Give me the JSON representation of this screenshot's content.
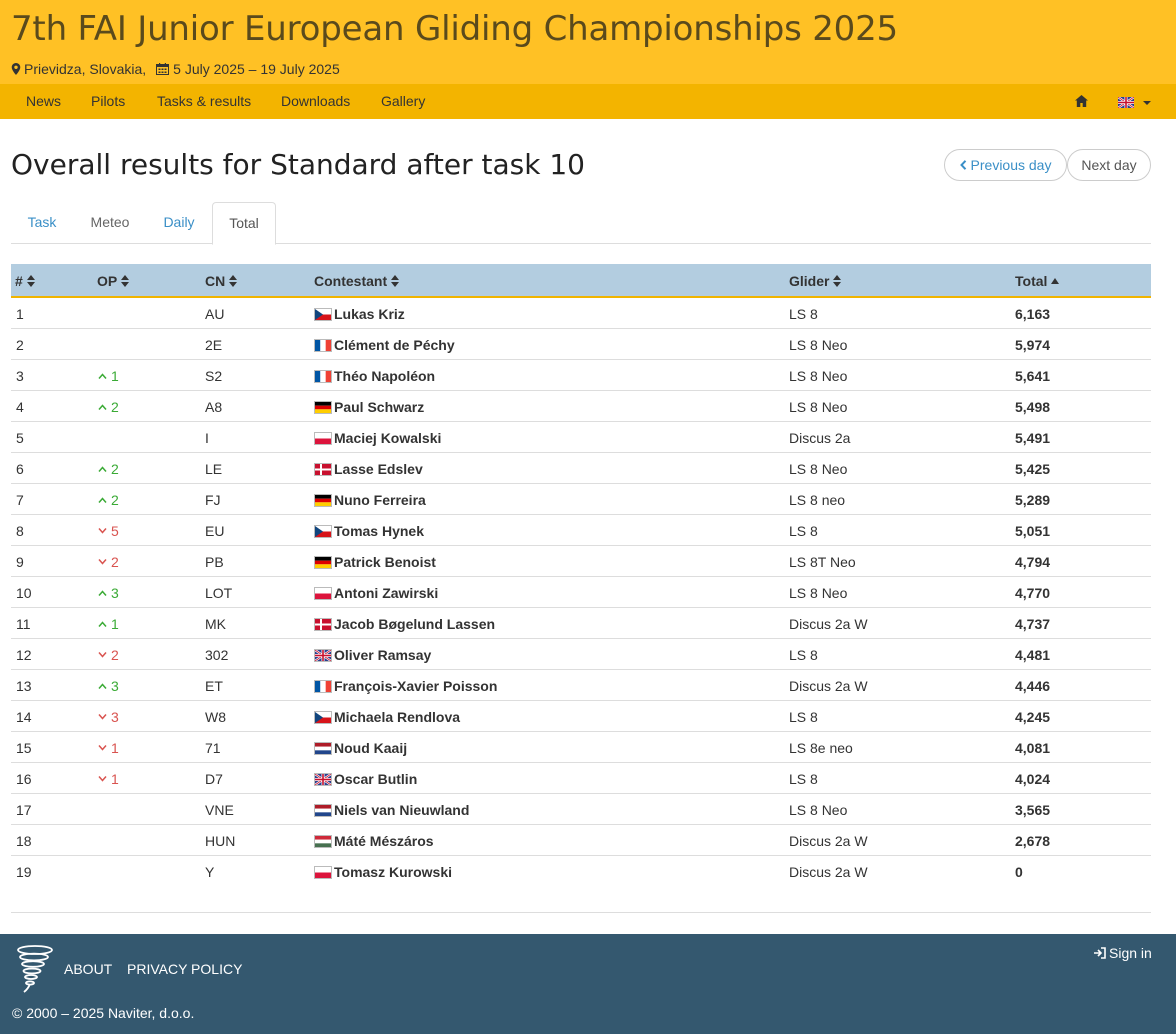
{
  "header": {
    "title": "7th FAI Junior European Gliding Championships 2025",
    "location": "Prievidza, Slovakia,",
    "dates": "5 July 2025 – 19 July 2025"
  },
  "nav": {
    "items": [
      "News",
      "Pilots",
      "Tasks & results",
      "Downloads",
      "Gallery"
    ],
    "language": "gb"
  },
  "page": {
    "title": "Overall results for Standard after task 10",
    "prev_day": "Previous day",
    "next_day": "Next day"
  },
  "tabs": [
    {
      "label": "Task",
      "active": false
    },
    {
      "label": "Meteo",
      "active": false
    },
    {
      "label": "Daily",
      "active": false
    },
    {
      "label": "Total",
      "active": true
    }
  ],
  "table": {
    "columns": [
      "#",
      "OP",
      "CN",
      "Contestant",
      "Glider",
      "Total"
    ],
    "sorted_column": "Total",
    "sort_direction": "asc",
    "rows": [
      {
        "rank": "1",
        "op_dir": "",
        "op": "",
        "cn": "AU",
        "flag": "cz",
        "name": "Lukas Kriz",
        "glider": "LS 8",
        "total": "6,163"
      },
      {
        "rank": "2",
        "op_dir": "",
        "op": "",
        "cn": "2E",
        "flag": "fr",
        "name": "Clément de Péchy",
        "glider": "LS 8 Neo",
        "total": "5,974"
      },
      {
        "rank": "3",
        "op_dir": "up",
        "op": "1",
        "cn": "S2",
        "flag": "fr",
        "name": "Théo Napoléon",
        "glider": "LS 8 Neo",
        "total": "5,641"
      },
      {
        "rank": "4",
        "op_dir": "up",
        "op": "2",
        "cn": "A8",
        "flag": "de",
        "name": "Paul Schwarz",
        "glider": "LS 8 Neo",
        "total": "5,498"
      },
      {
        "rank": "5",
        "op_dir": "",
        "op": "",
        "cn": "I",
        "flag": "pl",
        "name": "Maciej Kowalski",
        "glider": "Discus 2a",
        "total": "5,491"
      },
      {
        "rank": "6",
        "op_dir": "up",
        "op": "2",
        "cn": "LE",
        "flag": "dk",
        "name": "Lasse Edslev",
        "glider": "LS 8 Neo",
        "total": "5,425"
      },
      {
        "rank": "7",
        "op_dir": "up",
        "op": "2",
        "cn": "FJ",
        "flag": "de",
        "name": "Nuno Ferreira",
        "glider": "LS 8 neo",
        "total": "5,289"
      },
      {
        "rank": "8",
        "op_dir": "down",
        "op": "5",
        "cn": "EU",
        "flag": "cz",
        "name": "Tomas Hynek",
        "glider": "LS 8",
        "total": "5,051"
      },
      {
        "rank": "9",
        "op_dir": "down",
        "op": "2",
        "cn": "PB",
        "flag": "de",
        "name": "Patrick Benoist",
        "glider": "LS 8T Neo",
        "total": "4,794"
      },
      {
        "rank": "10",
        "op_dir": "up",
        "op": "3",
        "cn": "LOT",
        "flag": "pl",
        "name": "Antoni Zawirski",
        "glider": "LS 8 Neo",
        "total": "4,770"
      },
      {
        "rank": "11",
        "op_dir": "up",
        "op": "1",
        "cn": "MK",
        "flag": "dk",
        "name": "Jacob Bøgelund Lassen",
        "glider": "Discus 2a W",
        "total": "4,737"
      },
      {
        "rank": "12",
        "op_dir": "down",
        "op": "2",
        "cn": "302",
        "flag": "gb",
        "name": "Oliver Ramsay",
        "glider": "LS 8",
        "total": "4,481"
      },
      {
        "rank": "13",
        "op_dir": "up",
        "op": "3",
        "cn": "ET",
        "flag": "fr",
        "name": "François-Xavier Poisson",
        "glider": "Discus 2a W",
        "total": "4,446"
      },
      {
        "rank": "14",
        "op_dir": "down",
        "op": "3",
        "cn": "W8",
        "flag": "cz",
        "name": "Michaela Rendlova",
        "glider": "LS 8",
        "total": "4,245"
      },
      {
        "rank": "15",
        "op_dir": "down",
        "op": "1",
        "cn": "71",
        "flag": "nl",
        "name": "Noud Kaaij",
        "glider": "LS 8e neo",
        "total": "4,081"
      },
      {
        "rank": "16",
        "op_dir": "down",
        "op": "1",
        "cn": "D7",
        "flag": "gb",
        "name": "Oscar Butlin",
        "glider": "LS 8",
        "total": "4,024"
      },
      {
        "rank": "17",
        "op_dir": "",
        "op": "",
        "cn": "VNE",
        "flag": "nl",
        "name": "Niels van Nieuwland",
        "glider": "LS 8 Neo",
        "total": "3,565"
      },
      {
        "rank": "18",
        "op_dir": "",
        "op": "",
        "cn": "HUN",
        "flag": "hu",
        "name": "Máté Mészáros",
        "glider": "Discus 2a W",
        "total": "2,678"
      },
      {
        "rank": "19",
        "op_dir": "",
        "op": "",
        "cn": "Y",
        "flag": "pl",
        "name": "Tomasz Kurowski",
        "glider": "Discus 2a W",
        "total": "0"
      }
    ]
  },
  "footer": {
    "about": "ABOUT",
    "privacy": "PRIVACY POLICY",
    "sign_in": "Sign in",
    "copyright": "© 2000 – 2025 Naviter, d.o.o."
  },
  "colors": {
    "header_bg": "#ffc125",
    "nav_bg": "#f3b400",
    "table_header_bg": "#b3cde0",
    "footer_bg": "#34586f",
    "link": "#3a8fc7",
    "up": "#3aaa35",
    "down": "#d9534f"
  }
}
